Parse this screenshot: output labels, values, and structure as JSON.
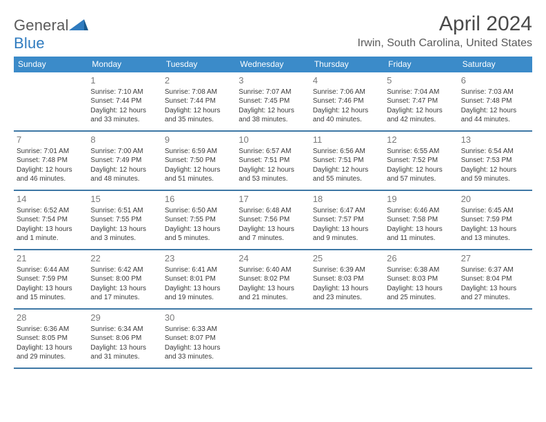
{
  "logo": {
    "part1": "General",
    "part2": "Blue"
  },
  "title": "April 2024",
  "location": "Irwin, South Carolina, United States",
  "colors": {
    "header_bg": "#3b8bc9",
    "header_text": "#ffffff",
    "divider": "#3d77a5",
    "logo_gray": "#5a5a5a",
    "logo_blue": "#2f7bbf",
    "text": "#3a3a3a",
    "daynum": "#7a7a7a"
  },
  "dow": [
    "Sunday",
    "Monday",
    "Tuesday",
    "Wednesday",
    "Thursday",
    "Friday",
    "Saturday"
  ],
  "weeks": [
    [
      {
        "n": "",
        "sr": "",
        "ss": "",
        "dl": ""
      },
      {
        "n": "1",
        "sr": "Sunrise: 7:10 AM",
        "ss": "Sunset: 7:44 PM",
        "dl": "Daylight: 12 hours and 33 minutes."
      },
      {
        "n": "2",
        "sr": "Sunrise: 7:08 AM",
        "ss": "Sunset: 7:44 PM",
        "dl": "Daylight: 12 hours and 35 minutes."
      },
      {
        "n": "3",
        "sr": "Sunrise: 7:07 AM",
        "ss": "Sunset: 7:45 PM",
        "dl": "Daylight: 12 hours and 38 minutes."
      },
      {
        "n": "4",
        "sr": "Sunrise: 7:06 AM",
        "ss": "Sunset: 7:46 PM",
        "dl": "Daylight: 12 hours and 40 minutes."
      },
      {
        "n": "5",
        "sr": "Sunrise: 7:04 AM",
        "ss": "Sunset: 7:47 PM",
        "dl": "Daylight: 12 hours and 42 minutes."
      },
      {
        "n": "6",
        "sr": "Sunrise: 7:03 AM",
        "ss": "Sunset: 7:48 PM",
        "dl": "Daylight: 12 hours and 44 minutes."
      }
    ],
    [
      {
        "n": "7",
        "sr": "Sunrise: 7:01 AM",
        "ss": "Sunset: 7:48 PM",
        "dl": "Daylight: 12 hours and 46 minutes."
      },
      {
        "n": "8",
        "sr": "Sunrise: 7:00 AM",
        "ss": "Sunset: 7:49 PM",
        "dl": "Daylight: 12 hours and 48 minutes."
      },
      {
        "n": "9",
        "sr": "Sunrise: 6:59 AM",
        "ss": "Sunset: 7:50 PM",
        "dl": "Daylight: 12 hours and 51 minutes."
      },
      {
        "n": "10",
        "sr": "Sunrise: 6:57 AM",
        "ss": "Sunset: 7:51 PM",
        "dl": "Daylight: 12 hours and 53 minutes."
      },
      {
        "n": "11",
        "sr": "Sunrise: 6:56 AM",
        "ss": "Sunset: 7:51 PM",
        "dl": "Daylight: 12 hours and 55 minutes."
      },
      {
        "n": "12",
        "sr": "Sunrise: 6:55 AM",
        "ss": "Sunset: 7:52 PM",
        "dl": "Daylight: 12 hours and 57 minutes."
      },
      {
        "n": "13",
        "sr": "Sunrise: 6:54 AM",
        "ss": "Sunset: 7:53 PM",
        "dl": "Daylight: 12 hours and 59 minutes."
      }
    ],
    [
      {
        "n": "14",
        "sr": "Sunrise: 6:52 AM",
        "ss": "Sunset: 7:54 PM",
        "dl": "Daylight: 13 hours and 1 minute."
      },
      {
        "n": "15",
        "sr": "Sunrise: 6:51 AM",
        "ss": "Sunset: 7:55 PM",
        "dl": "Daylight: 13 hours and 3 minutes."
      },
      {
        "n": "16",
        "sr": "Sunrise: 6:50 AM",
        "ss": "Sunset: 7:55 PM",
        "dl": "Daylight: 13 hours and 5 minutes."
      },
      {
        "n": "17",
        "sr": "Sunrise: 6:48 AM",
        "ss": "Sunset: 7:56 PM",
        "dl": "Daylight: 13 hours and 7 minutes."
      },
      {
        "n": "18",
        "sr": "Sunrise: 6:47 AM",
        "ss": "Sunset: 7:57 PM",
        "dl": "Daylight: 13 hours and 9 minutes."
      },
      {
        "n": "19",
        "sr": "Sunrise: 6:46 AM",
        "ss": "Sunset: 7:58 PM",
        "dl": "Daylight: 13 hours and 11 minutes."
      },
      {
        "n": "20",
        "sr": "Sunrise: 6:45 AM",
        "ss": "Sunset: 7:59 PM",
        "dl": "Daylight: 13 hours and 13 minutes."
      }
    ],
    [
      {
        "n": "21",
        "sr": "Sunrise: 6:44 AM",
        "ss": "Sunset: 7:59 PM",
        "dl": "Daylight: 13 hours and 15 minutes."
      },
      {
        "n": "22",
        "sr": "Sunrise: 6:42 AM",
        "ss": "Sunset: 8:00 PM",
        "dl": "Daylight: 13 hours and 17 minutes."
      },
      {
        "n": "23",
        "sr": "Sunrise: 6:41 AM",
        "ss": "Sunset: 8:01 PM",
        "dl": "Daylight: 13 hours and 19 minutes."
      },
      {
        "n": "24",
        "sr": "Sunrise: 6:40 AM",
        "ss": "Sunset: 8:02 PM",
        "dl": "Daylight: 13 hours and 21 minutes."
      },
      {
        "n": "25",
        "sr": "Sunrise: 6:39 AM",
        "ss": "Sunset: 8:03 PM",
        "dl": "Daylight: 13 hours and 23 minutes."
      },
      {
        "n": "26",
        "sr": "Sunrise: 6:38 AM",
        "ss": "Sunset: 8:03 PM",
        "dl": "Daylight: 13 hours and 25 minutes."
      },
      {
        "n": "27",
        "sr": "Sunrise: 6:37 AM",
        "ss": "Sunset: 8:04 PM",
        "dl": "Daylight: 13 hours and 27 minutes."
      }
    ],
    [
      {
        "n": "28",
        "sr": "Sunrise: 6:36 AM",
        "ss": "Sunset: 8:05 PM",
        "dl": "Daylight: 13 hours and 29 minutes."
      },
      {
        "n": "29",
        "sr": "Sunrise: 6:34 AM",
        "ss": "Sunset: 8:06 PM",
        "dl": "Daylight: 13 hours and 31 minutes."
      },
      {
        "n": "30",
        "sr": "Sunrise: 6:33 AM",
        "ss": "Sunset: 8:07 PM",
        "dl": "Daylight: 13 hours and 33 minutes."
      },
      {
        "n": "",
        "sr": "",
        "ss": "",
        "dl": ""
      },
      {
        "n": "",
        "sr": "",
        "ss": "",
        "dl": ""
      },
      {
        "n": "",
        "sr": "",
        "ss": "",
        "dl": ""
      },
      {
        "n": "",
        "sr": "",
        "ss": "",
        "dl": ""
      }
    ]
  ]
}
